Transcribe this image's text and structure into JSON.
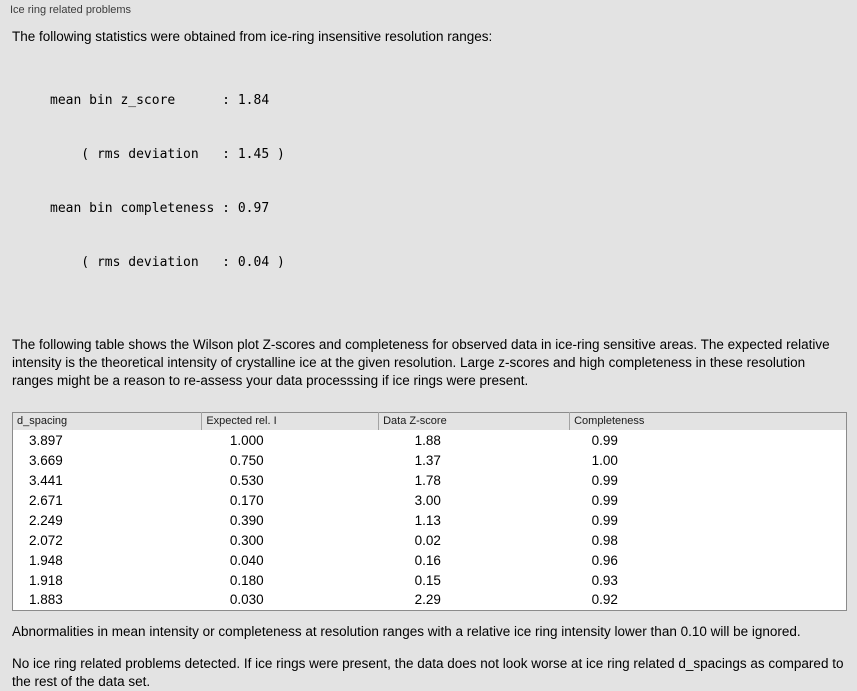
{
  "panel": {
    "title": "Ice ring related problems"
  },
  "intro_text": "The following statistics were obtained from ice-ring insensitive resolution ranges:",
  "stats_lines": [
    "mean bin z_score      : 1.84",
    "    ( rms deviation   : 1.45 )",
    "mean bin completeness : 0.97",
    "    ( rms deviation   : 0.04 )"
  ],
  "description": "The following table shows the Wilson plot Z-scores and completeness for observed data in ice-ring sensitive areas. The expected relative intensity is the theoretical intensity of crystalline ice at the given resolution. Large z-scores and high completeness in these resolution ranges might be a reason to re-assess your data processsing if ice rings were present.",
  "table": {
    "columns": [
      "d_spacing",
      "Expected rel. I",
      "Data Z-score",
      "Completeness"
    ],
    "rows": [
      [
        "3.897",
        "1.000",
        "1.88",
        "0.99"
      ],
      [
        "3.669",
        "0.750",
        "1.37",
        "1.00"
      ],
      [
        "3.441",
        "0.530",
        "1.78",
        "0.99"
      ],
      [
        "2.671",
        "0.170",
        "3.00",
        "0.99"
      ],
      [
        "2.249",
        "0.390",
        "1.13",
        "0.99"
      ],
      [
        "2.072",
        "0.300",
        "0.02",
        "0.98"
      ],
      [
        "1.948",
        "0.040",
        "0.16",
        "0.96"
      ],
      [
        "1.918",
        "0.180",
        "0.15",
        "0.93"
      ],
      [
        "1.883",
        "0.030",
        "2.29",
        "0.92"
      ]
    ]
  },
  "notes": {
    "ignore_note": "Abnormalities in mean intensity or completeness at resolution ranges with a relative ice ring intensity lower than 0.10 will be ignored.",
    "conclusion": "No ice ring related problems detected. If ice rings were present, the data does not look worse at ice ring related d_spacings as compared to the rest of the data set."
  }
}
